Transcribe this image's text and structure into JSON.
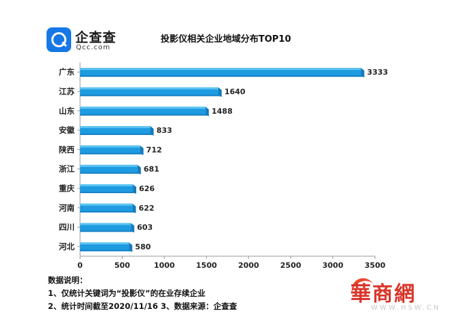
{
  "brand": {
    "name": "企查查",
    "domain": "Qcc.com",
    "icon": "qcc-search-icon"
  },
  "chart_data": {
    "type": "bar",
    "orientation": "horizontal",
    "title": "投影仪相关企业地域分布TOP10",
    "categories": [
      "广东",
      "江苏",
      "山东",
      "安徽",
      "陕西",
      "浙江",
      "重庆",
      "河南",
      "四川",
      "河北"
    ],
    "values": [
      3333,
      1640,
      1488,
      833,
      712,
      681,
      626,
      622,
      603,
      580
    ],
    "xlim": [
      0,
      3500
    ],
    "xticks": [
      "0",
      "500",
      "1000",
      "1500",
      "2000",
      "2500",
      "3000",
      "3500"
    ],
    "grid": false,
    "bar_color": "#1e9be0",
    "bar_highlight": "#5cc4f3"
  },
  "notes": {
    "heading": "数据说明：",
    "line1": "1、仅统计关键词为“投影仪”的在业存续企业",
    "line2": "2、统计时间截至2020/11/16  3、数据来源：企查查"
  },
  "watermark": {
    "logo": "華商網",
    "url": "WWW.HSW.CN"
  }
}
